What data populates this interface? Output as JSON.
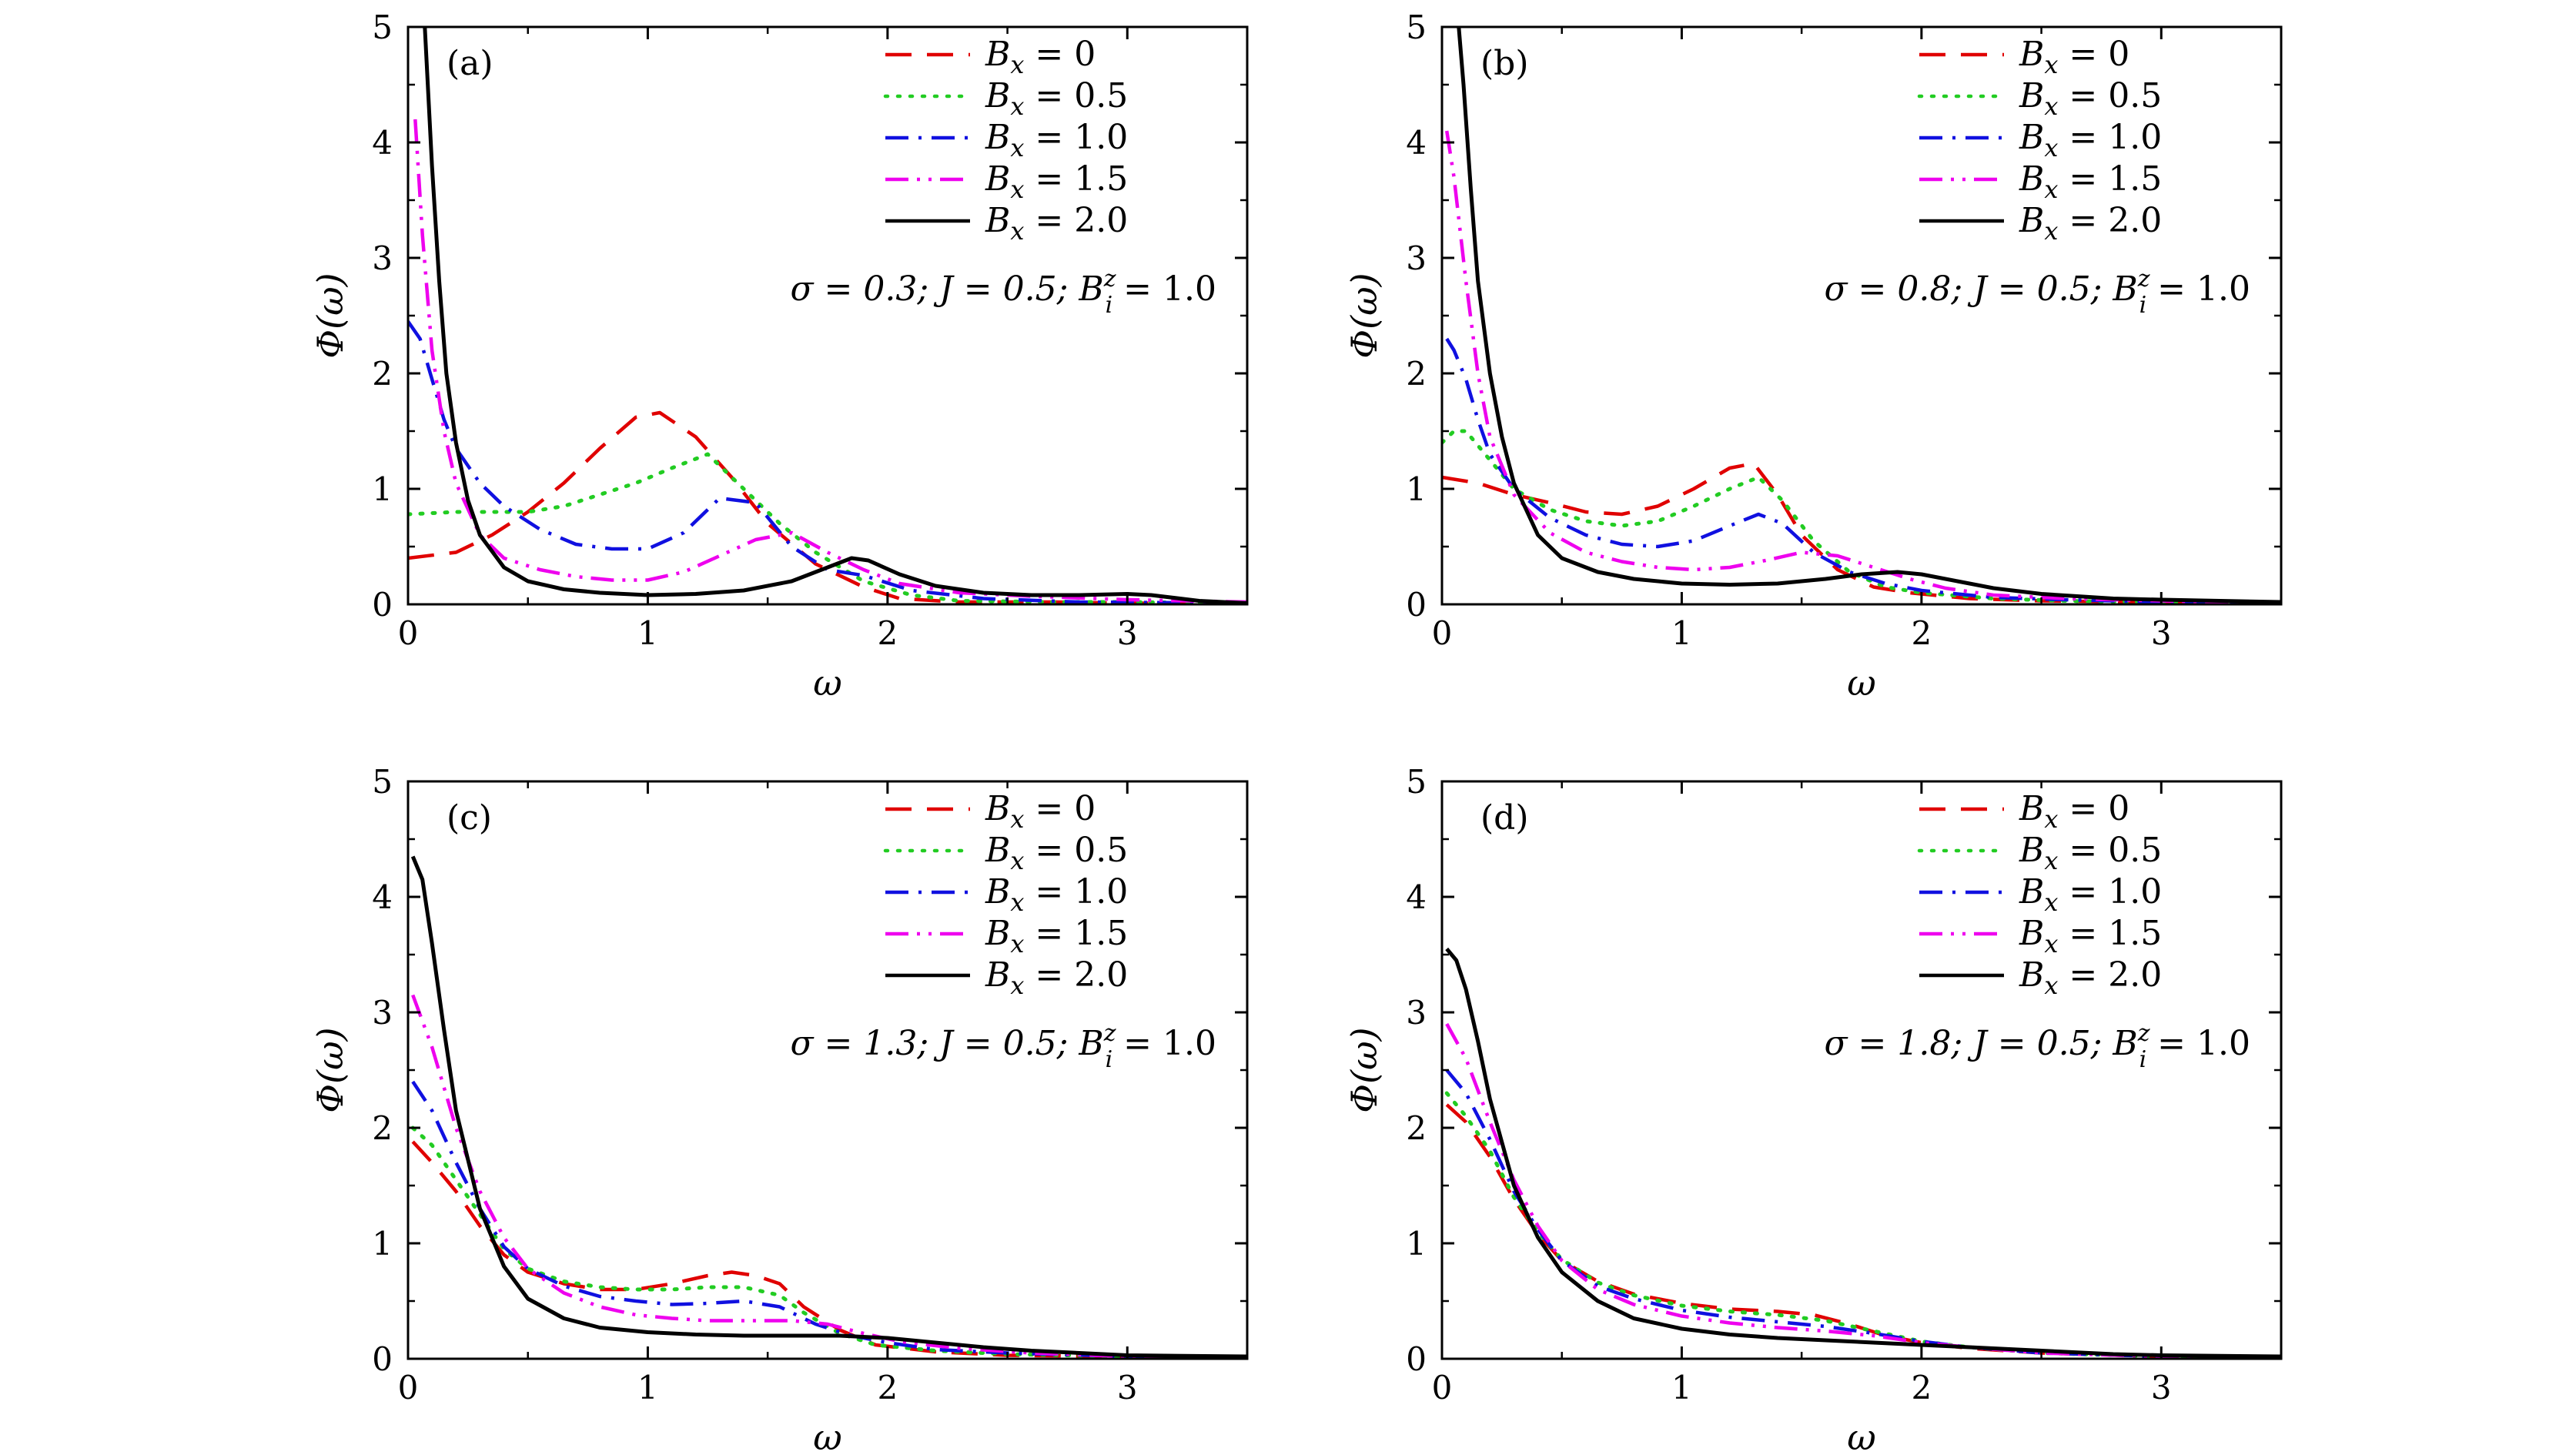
{
  "chart_data": [
    {
      "type": "line",
      "panel_label": "(a)",
      "params": "σ = 0.3;  J = 0.5;  B_i^z = 1.0",
      "xlabel": "ω",
      "ylabel": "Φ(ω)",
      "xlim": [
        0,
        3.5
      ],
      "ylim": [
        0,
        5
      ],
      "xticks": [
        "0",
        "1",
        "2",
        "3"
      ],
      "yticks": [
        "0",
        "1",
        "2",
        "3",
        "4",
        "5"
      ],
      "legend_position": "top-right",
      "series": [
        {
          "name": "Bx = 0",
          "style": "dashed",
          "color": "#e00000",
          "x": [
            0,
            0.2,
            0.35,
            0.5,
            0.65,
            0.8,
            0.95,
            1.05,
            1.2,
            1.35,
            1.5,
            1.7,
            1.9,
            2.05,
            2.3,
            2.7,
            3.0,
            3.5
          ],
          "y": [
            0.4,
            0.45,
            0.6,
            0.8,
            1.05,
            1.35,
            1.62,
            1.66,
            1.45,
            1.1,
            0.7,
            0.35,
            0.15,
            0.05,
            0.02,
            0.02,
            0.01,
            0.01
          ]
        },
        {
          "name": "Bx = 0.5",
          "style": "dotted",
          "color": "#22cc22",
          "x": [
            0,
            0.2,
            0.35,
            0.5,
            0.65,
            0.8,
            0.95,
            1.1,
            1.25,
            1.4,
            1.55,
            1.7,
            1.9,
            2.1,
            2.3,
            2.7,
            3.0,
            3.5
          ],
          "y": [
            0.78,
            0.8,
            0.8,
            0.8,
            0.85,
            0.95,
            1.05,
            1.18,
            1.3,
            1.0,
            0.7,
            0.45,
            0.2,
            0.08,
            0.03,
            0.02,
            0.02,
            0.01
          ]
        },
        {
          "name": "Bx = 1.0",
          "style": "dashdot",
          "color": "#1010e0",
          "x": [
            0,
            0.05,
            0.1,
            0.15,
            0.2,
            0.3,
            0.4,
            0.55,
            0.7,
            0.85,
            1.0,
            1.15,
            1.3,
            1.45,
            1.6,
            1.75,
            1.9,
            2.1,
            2.4,
            2.8,
            3.5
          ],
          "y": [
            2.45,
            2.3,
            1.95,
            1.6,
            1.35,
            1.05,
            0.85,
            0.65,
            0.52,
            0.48,
            0.48,
            0.62,
            0.92,
            0.88,
            0.5,
            0.3,
            0.25,
            0.12,
            0.05,
            0.02,
            0.01
          ]
        },
        {
          "name": "Bx = 1.5",
          "style": "dashdotdot",
          "color": "#ee00ee",
          "x": [
            0.03,
            0.06,
            0.1,
            0.15,
            0.2,
            0.3,
            0.4,
            0.55,
            0.7,
            0.85,
            1.0,
            1.15,
            1.3,
            1.45,
            1.6,
            1.75,
            1.9,
            2.05,
            2.3,
            2.6,
            3.0,
            3.5
          ],
          "y": [
            4.2,
            3.2,
            2.2,
            1.5,
            1.05,
            0.6,
            0.4,
            0.3,
            0.24,
            0.21,
            0.21,
            0.28,
            0.42,
            0.56,
            0.62,
            0.45,
            0.3,
            0.18,
            0.1,
            0.07,
            0.04,
            0.02
          ]
        },
        {
          "name": "Bx = 2.0",
          "style": "solid",
          "color": "#000000",
          "x": [
            0.07,
            0.08,
            0.1,
            0.13,
            0.16,
            0.2,
            0.25,
            0.3,
            0.4,
            0.5,
            0.65,
            0.8,
            1.0,
            1.2,
            1.4,
            1.6,
            1.75,
            1.85,
            1.92,
            2.05,
            2.2,
            2.4,
            2.6,
            2.8,
            3.0,
            3.1,
            3.3,
            3.5
          ],
          "y": [
            5.0,
            4.6,
            3.8,
            2.8,
            2.0,
            1.4,
            0.9,
            0.6,
            0.32,
            0.2,
            0.13,
            0.1,
            0.08,
            0.09,
            0.12,
            0.2,
            0.32,
            0.4,
            0.38,
            0.26,
            0.16,
            0.1,
            0.08,
            0.08,
            0.09,
            0.08,
            0.03,
            0.01
          ]
        }
      ]
    },
    {
      "type": "line",
      "panel_label": "(b)",
      "params": "σ = 0.8;  J = 0.5;  B_i^z = 1.0",
      "xlabel": "ω",
      "ylabel": "Φ(ω)",
      "xlim": [
        0,
        3.5
      ],
      "ylim": [
        0,
        5
      ],
      "xticks": [
        "0",
        "1",
        "2",
        "3"
      ],
      "yticks": [
        "0",
        "1",
        "2",
        "3",
        "4",
        "5"
      ],
      "legend_position": "top-right",
      "series": [
        {
          "name": "Bx = 0",
          "style": "dashed",
          "color": "#e00000",
          "x": [
            0,
            0.15,
            0.3,
            0.45,
            0.6,
            0.75,
            0.9,
            1.05,
            1.2,
            1.3,
            1.4,
            1.5,
            1.65,
            1.8,
            1.95,
            2.2,
            2.5,
            3.0,
            3.5
          ],
          "y": [
            1.1,
            1.05,
            0.95,
            0.88,
            0.8,
            0.78,
            0.85,
            1.0,
            1.18,
            1.22,
            0.95,
            0.6,
            0.3,
            0.15,
            0.1,
            0.05,
            0.03,
            0.02,
            0.01
          ]
        },
        {
          "name": "Bx = 0.5",
          "style": "dotted",
          "color": "#22cc22",
          "x": [
            0,
            0.05,
            0.1,
            0.2,
            0.3,
            0.45,
            0.6,
            0.75,
            0.9,
            1.05,
            1.2,
            1.32,
            1.42,
            1.55,
            1.7,
            1.85,
            2.0,
            2.3,
            2.6,
            3.0,
            3.5
          ],
          "y": [
            1.4,
            1.5,
            1.5,
            1.25,
            1.0,
            0.82,
            0.72,
            0.68,
            0.72,
            0.85,
            1.0,
            1.1,
            0.9,
            0.55,
            0.28,
            0.15,
            0.1,
            0.05,
            0.03,
            0.02,
            0.01
          ]
        },
        {
          "name": "Bx = 1.0",
          "style": "dashdot",
          "color": "#1010e0",
          "x": [
            0.02,
            0.05,
            0.1,
            0.15,
            0.2,
            0.3,
            0.45,
            0.6,
            0.75,
            0.9,
            1.05,
            1.2,
            1.32,
            1.42,
            1.55,
            1.7,
            1.85,
            2.0,
            2.3,
            2.6,
            3.0,
            3.5
          ],
          "y": [
            2.3,
            2.2,
            1.95,
            1.6,
            1.3,
            1.0,
            0.75,
            0.6,
            0.52,
            0.5,
            0.55,
            0.68,
            0.78,
            0.7,
            0.45,
            0.28,
            0.18,
            0.12,
            0.06,
            0.04,
            0.02,
            0.01
          ]
        },
        {
          "name": "Bx = 1.5",
          "style": "dashdotdot",
          "color": "#ee00ee",
          "x": [
            0.02,
            0.05,
            0.1,
            0.15,
            0.2,
            0.3,
            0.45,
            0.6,
            0.75,
            0.9,
            1.05,
            1.2,
            1.35,
            1.5,
            1.65,
            1.8,
            1.95,
            2.1,
            2.3,
            2.6,
            3.0,
            3.5
          ],
          "y": [
            4.1,
            3.7,
            2.8,
            2.0,
            1.45,
            0.95,
            0.62,
            0.45,
            0.37,
            0.32,
            0.3,
            0.32,
            0.38,
            0.45,
            0.42,
            0.32,
            0.22,
            0.14,
            0.08,
            0.05,
            0.03,
            0.01
          ]
        },
        {
          "name": "Bx = 2.0",
          "style": "solid",
          "color": "#000000",
          "x": [
            0.07,
            0.09,
            0.12,
            0.15,
            0.2,
            0.25,
            0.3,
            0.4,
            0.5,
            0.65,
            0.8,
            1.0,
            1.2,
            1.4,
            1.6,
            1.75,
            1.9,
            2.0,
            2.15,
            2.3,
            2.5,
            2.8,
            3.0,
            3.5
          ],
          "y": [
            5.0,
            4.5,
            3.6,
            2.8,
            2.0,
            1.45,
            1.05,
            0.6,
            0.4,
            0.28,
            0.22,
            0.18,
            0.17,
            0.18,
            0.22,
            0.26,
            0.28,
            0.26,
            0.2,
            0.14,
            0.09,
            0.05,
            0.04,
            0.02
          ]
        }
      ]
    },
    {
      "type": "line",
      "panel_label": "(c)",
      "params": "σ = 1.3;  J = 0.5;  B_i^z = 1.0",
      "xlabel": "ω",
      "ylabel": "Φ(ω)",
      "xlim": [
        0,
        3.5
      ],
      "ylim": [
        0,
        5
      ],
      "xticks": [
        "0",
        "1",
        "2",
        "3"
      ],
      "yticks": [
        "0",
        "1",
        "2",
        "3",
        "4",
        "5"
      ],
      "legend_position": "top-right",
      "series": [
        {
          "name": "Bx = 0",
          "style": "dashed",
          "color": "#e00000",
          "x": [
            0.02,
            0.1,
            0.2,
            0.3,
            0.4,
            0.5,
            0.65,
            0.8,
            0.95,
            1.1,
            1.25,
            1.35,
            1.45,
            1.55,
            1.65,
            1.8,
            1.95,
            2.2,
            2.5,
            3.0,
            3.5
          ],
          "y": [
            1.88,
            1.7,
            1.45,
            1.15,
            0.9,
            0.75,
            0.65,
            0.6,
            0.6,
            0.65,
            0.72,
            0.75,
            0.72,
            0.65,
            0.45,
            0.25,
            0.12,
            0.06,
            0.03,
            0.02,
            0.01
          ]
        },
        {
          "name": "Bx = 0.5",
          "style": "dotted",
          "color": "#22cc22",
          "x": [
            0.02,
            0.1,
            0.2,
            0.3,
            0.4,
            0.5,
            0.65,
            0.8,
            0.95,
            1.1,
            1.25,
            1.4,
            1.55,
            1.65,
            1.8,
            1.95,
            2.2,
            2.5,
            3.0,
            3.5
          ],
          "y": [
            2.0,
            1.85,
            1.55,
            1.25,
            0.95,
            0.78,
            0.67,
            0.62,
            0.6,
            0.6,
            0.62,
            0.62,
            0.55,
            0.4,
            0.22,
            0.12,
            0.07,
            0.04,
            0.02,
            0.01
          ]
        },
        {
          "name": "Bx = 1.0",
          "style": "dashdot",
          "color": "#1010e0",
          "x": [
            0.02,
            0.1,
            0.2,
            0.3,
            0.4,
            0.5,
            0.65,
            0.8,
            0.95,
            1.1,
            1.25,
            1.4,
            1.55,
            1.7,
            1.85,
            2.0,
            2.2,
            2.5,
            3.0,
            3.5
          ],
          "y": [
            2.4,
            2.15,
            1.7,
            1.3,
            0.97,
            0.78,
            0.63,
            0.54,
            0.5,
            0.47,
            0.48,
            0.5,
            0.45,
            0.3,
            0.2,
            0.14,
            0.08,
            0.05,
            0.02,
            0.01
          ]
        },
        {
          "name": "Bx = 1.5",
          "style": "dashdotdot",
          "color": "#ee00ee",
          "x": [
            0.02,
            0.1,
            0.2,
            0.3,
            0.4,
            0.5,
            0.65,
            0.8,
            0.95,
            1.1,
            1.25,
            1.4,
            1.6,
            1.75,
            1.9,
            2.05,
            2.3,
            2.6,
            3.0,
            3.5
          ],
          "y": [
            3.15,
            2.7,
            2.0,
            1.45,
            1.05,
            0.78,
            0.57,
            0.45,
            0.38,
            0.35,
            0.33,
            0.33,
            0.33,
            0.3,
            0.22,
            0.15,
            0.09,
            0.05,
            0.02,
            0.01
          ]
        },
        {
          "name": "Bx = 2.0",
          "style": "solid",
          "color": "#000000",
          "x": [
            0.02,
            0.06,
            0.1,
            0.15,
            0.2,
            0.3,
            0.4,
            0.5,
            0.65,
            0.8,
            1.0,
            1.2,
            1.4,
            1.6,
            1.8,
            2.0,
            2.2,
            2.4,
            2.6,
            2.8,
            3.0,
            3.5
          ],
          "y": [
            4.35,
            4.15,
            3.6,
            2.85,
            2.15,
            1.3,
            0.8,
            0.52,
            0.35,
            0.27,
            0.23,
            0.21,
            0.2,
            0.2,
            0.2,
            0.18,
            0.14,
            0.1,
            0.07,
            0.05,
            0.03,
            0.02
          ]
        }
      ]
    },
    {
      "type": "line",
      "panel_label": "(d)",
      "params": "σ = 1.8;  J = 0.5;  B_i^z = 1.0",
      "xlabel": "ω",
      "ylabel": "Φ(ω)",
      "xlim": [
        0,
        3.5
      ],
      "ylim": [
        0,
        5
      ],
      "xticks": [
        "0",
        "1",
        "2",
        "3"
      ],
      "yticks": [
        "0",
        "1",
        "2",
        "3",
        "4",
        "5"
      ],
      "legend_position": "top-right",
      "series": [
        {
          "name": "Bx = 0",
          "style": "dashed",
          "color": "#e00000",
          "x": [
            0.02,
            0.1,
            0.2,
            0.3,
            0.4,
            0.5,
            0.65,
            0.8,
            1.0,
            1.2,
            1.4,
            1.55,
            1.7,
            1.85,
            2.0,
            2.2,
            2.5,
            3.0,
            3.5
          ],
          "y": [
            2.2,
            2.05,
            1.75,
            1.38,
            1.08,
            0.85,
            0.67,
            0.56,
            0.48,
            0.43,
            0.41,
            0.38,
            0.3,
            0.2,
            0.14,
            0.09,
            0.05,
            0.02,
            0.01
          ]
        },
        {
          "name": "Bx = 0.5",
          "style": "dotted",
          "color": "#22cc22",
          "x": [
            0.02,
            0.1,
            0.2,
            0.3,
            0.4,
            0.5,
            0.65,
            0.8,
            1.0,
            1.2,
            1.4,
            1.6,
            1.8,
            2.0,
            2.2,
            2.5,
            3.0,
            3.5
          ],
          "y": [
            2.3,
            2.1,
            1.8,
            1.4,
            1.1,
            0.86,
            0.66,
            0.55,
            0.46,
            0.41,
            0.38,
            0.33,
            0.24,
            0.15,
            0.1,
            0.05,
            0.02,
            0.01
          ]
        },
        {
          "name": "Bx = 1.0",
          "style": "dashdot",
          "color": "#1010e0",
          "x": [
            0.02,
            0.1,
            0.2,
            0.3,
            0.4,
            0.5,
            0.65,
            0.8,
            1.0,
            1.2,
            1.4,
            1.6,
            1.8,
            2.0,
            2.2,
            2.5,
            3.0,
            3.5
          ],
          "y": [
            2.5,
            2.3,
            1.9,
            1.45,
            1.12,
            0.85,
            0.63,
            0.52,
            0.42,
            0.36,
            0.32,
            0.28,
            0.22,
            0.15,
            0.1,
            0.05,
            0.02,
            0.01
          ]
        },
        {
          "name": "Bx = 1.5",
          "style": "dashdotdot",
          "color": "#ee00ee",
          "x": [
            0.02,
            0.1,
            0.2,
            0.3,
            0.4,
            0.5,
            0.65,
            0.8,
            1.0,
            1.2,
            1.4,
            1.6,
            1.8,
            2.0,
            2.2,
            2.5,
            3.0,
            3.5
          ],
          "y": [
            2.9,
            2.6,
            2.05,
            1.55,
            1.15,
            0.85,
            0.6,
            0.47,
            0.37,
            0.31,
            0.27,
            0.24,
            0.2,
            0.14,
            0.1,
            0.05,
            0.02,
            0.01
          ]
        },
        {
          "name": "Bx = 2.0",
          "style": "solid",
          "color": "#000000",
          "x": [
            0.02,
            0.06,
            0.1,
            0.15,
            0.2,
            0.3,
            0.4,
            0.5,
            0.65,
            0.8,
            1.0,
            1.2,
            1.4,
            1.6,
            1.8,
            2.0,
            2.2,
            2.4,
            2.6,
            2.8,
            3.0,
            3.5
          ],
          "y": [
            3.55,
            3.45,
            3.2,
            2.75,
            2.25,
            1.5,
            1.05,
            0.75,
            0.5,
            0.35,
            0.26,
            0.21,
            0.18,
            0.16,
            0.14,
            0.12,
            0.1,
            0.08,
            0.06,
            0.04,
            0.03,
            0.02
          ]
        }
      ]
    }
  ]
}
